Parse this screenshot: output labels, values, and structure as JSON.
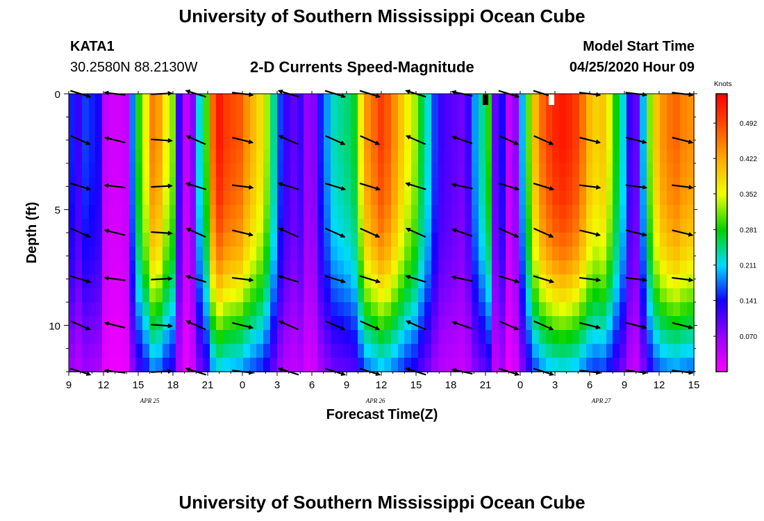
{
  "header": {
    "title": "University of Southern Mississippi Ocean Cube",
    "station": "KATA1",
    "coords": "30.2580N 88.2130W",
    "subtitle": "2-D Currents Speed-Magnitude",
    "model_start_label": "Model Start Time",
    "model_start_value": "04/25/2020 Hour 09"
  },
  "footer": {
    "title": "University of Southern Mississippi Ocean Cube"
  },
  "chart_data": {
    "type": "heatmap",
    "title": "2-D Currents Speed-Magnitude",
    "xlabel": "Forecast Time(Z)",
    "ylabel": "Depth (ft)",
    "x_range_hours": [
      0,
      54
    ],
    "x_start": "04/25/2020 09Z",
    "x_tick_labels": [
      "9",
      "12",
      "15",
      "18",
      "21",
      "0",
      "3",
      "6",
      "9",
      "12",
      "15",
      "18",
      "21",
      "0",
      "3",
      "6",
      "9",
      "12",
      "15"
    ],
    "date_labels": [
      {
        "text": "APR 25",
        "hour": 7
      },
      {
        "text": "APR 26",
        "hour": 26.5
      },
      {
        "text": "APR 27",
        "hour": 46
      }
    ],
    "ylim": [
      0,
      12
    ],
    "y_tick_labels": [
      0,
      5,
      10
    ],
    "colorbar": {
      "label": "Knots",
      "range": [
        0,
        0.55
      ],
      "ticks": [
        "0.070",
        "0.141",
        "0.211",
        "0.281",
        "0.352",
        "0.422",
        "0.492"
      ],
      "tick_values": [
        0.07,
        0.141,
        0.211,
        0.281,
        0.352,
        0.422,
        0.492
      ]
    },
    "speed_profile_surface_knots": [
      0.15,
      0.12,
      0.16,
      0.15,
      0.14,
      0.04,
      0.03,
      0.03,
      0.04,
      0.18,
      0.29,
      0.36,
      0.45,
      0.43,
      0.36,
      0.32,
      0.12,
      0.04,
      0.08,
      0.22,
      0.3,
      0.47,
      0.53,
      0.5,
      0.49,
      0.48,
      0.44,
      0.41,
      0.38,
      0.33,
      0.24,
      0.16,
      0.12,
      0.1,
      0.12,
      0.07,
      0.08,
      0.15,
      0.19,
      0.23,
      0.24,
      0.25,
      0.27,
      0.36,
      0.44,
      0.47,
      0.5,
      0.48,
      0.44,
      0.4,
      0.36,
      0.33,
      0.27,
      0.22,
      0.16,
      0.12,
      0.11,
      0.1,
      0.09,
      0.12,
      0.19,
      0.24,
      0.29,
      0.1,
      0.14,
      0.04,
      0.07,
      0.2,
      0.31,
      0.41,
      0.47,
      0.5,
      0.52,
      0.53,
      0.52,
      0.5,
      0.46,
      0.41,
      0.39,
      0.4,
      0.35,
      0.28,
      0.22,
      0.12,
      0.1,
      0.2,
      0.32,
      0.4,
      0.44,
      0.46,
      0.47,
      0.45,
      0.44
    ],
    "depth_attenuation": [
      1.0,
      1.0,
      1.0,
      1.0,
      0.99,
      0.98,
      0.97,
      0.96,
      0.94,
      0.92,
      0.89,
      0.86,
      0.82,
      0.77,
      0.72,
      0.66,
      0.6,
      0.54,
      0.48,
      0.42
    ],
    "vector_hours": [
      1,
      4,
      8,
      11,
      15,
      19,
      23,
      26,
      30,
      34,
      38,
      41,
      45,
      49,
      53
    ],
    "vector_depths": [
      0,
      2,
      4,
      6,
      8,
      10,
      12
    ],
    "vector_dirs_deg": [
      20,
      190,
      0,
      200,
      10,
      200,
      20,
      20,
      200,
      195,
      20,
      20,
      10,
      10,
      10
    ],
    "markers": [
      {
        "hour": 36,
        "depth": 0,
        "color": "#000000"
      },
      {
        "hour": 41.7,
        "depth": 0,
        "color": "#ffffff"
      }
    ]
  }
}
